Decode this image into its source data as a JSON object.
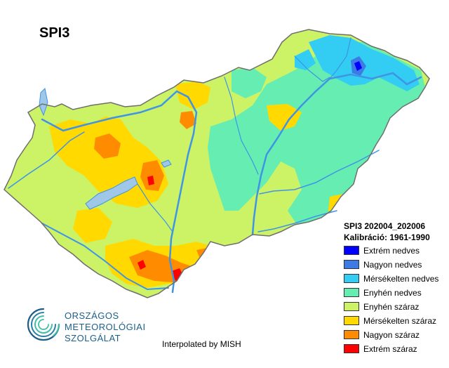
{
  "map": {
    "title": "SPI3",
    "credit": "Interpolated by MISH",
    "colors": {
      "border": "#6e6e6e",
      "water": "#3f94e6",
      "lake": "#9ec7e8"
    }
  },
  "legend": {
    "heading": "SPI3 202004_202006",
    "calibration": "Kalibráció: 1961-1990",
    "items": [
      {
        "label": "Extrém nedves",
        "color": "#0000ff"
      },
      {
        "label": "Nagyon nedves",
        "color": "#3c7be6"
      },
      {
        "label": "Mérsékelten nedves",
        "color": "#33ccf2"
      },
      {
        "label": "Enyhén nedves",
        "color": "#66eeb2"
      },
      {
        "label": "Enyhén száraz",
        "color": "#ccf266"
      },
      {
        "label": "Mérsékelten száraz",
        "color": "#ffd900"
      },
      {
        "label": "Nagyon száraz",
        "color": "#ff8c00"
      },
      {
        "label": "Extrém száraz",
        "color": "#ff0000"
      }
    ]
  },
  "logo": {
    "lines": [
      "ORSZÁGOS",
      "METEOROLÓGIAI",
      "SZOLGÁLAT"
    ],
    "color": "#1c5f8a",
    "accent": "#3fbfa8"
  }
}
